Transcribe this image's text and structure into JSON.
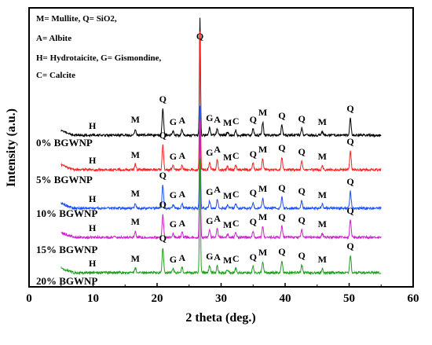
{
  "chart_data": {
    "type": "line",
    "title": "",
    "xlabel": "2 theta (deg.)",
    "ylabel": "Intensity (a.u.)",
    "xlim": [
      0,
      60
    ],
    "xticks": [
      0,
      10,
      20,
      30,
      40,
      50,
      60
    ],
    "yticks": "none",
    "grid": false,
    "legend_position": "top-left",
    "legend_text": [
      "M= Mullite,  Q= SiO2,",
      "A= Albite",
      "H= Hydrotaicite,  G= Gismondine,",
      "C= Calcite"
    ],
    "x_range_data": [
      5,
      55
    ],
    "peaks": [
      {
        "label": "H",
        "x": 9.9
      },
      {
        "label": "M",
        "x": 16.6
      },
      {
        "label": "Q",
        "x": 20.9
      },
      {
        "label": "G",
        "x": 22.5
      },
      {
        "label": "A",
        "x": 23.9
      },
      {
        "label": "Q",
        "x": 26.7
      },
      {
        "label": "G",
        "x": 28.2
      },
      {
        "label": "A",
        "x": 29.4
      },
      {
        "label": "M",
        "x": 31.0
      },
      {
        "label": "C",
        "x": 32.3
      },
      {
        "label": "Q",
        "x": 35.0
      },
      {
        "label": "M",
        "x": 36.5
      },
      {
        "label": "Q",
        "x": 39.5
      },
      {
        "label": "Q",
        "x": 42.6
      },
      {
        "label": "M",
        "x": 45.8
      },
      {
        "label": "Q",
        "x": 50.2
      }
    ],
    "series": [
      {
        "name": "0% BGWNP",
        "color": "#000000",
        "peak_heights": [
          0,
          8,
          34,
          5,
          7,
          150,
          10,
          8,
          4,
          6,
          8,
          17,
          13,
          9,
          5,
          22
        ]
      },
      {
        "name": "5% BGWNP",
        "color": "#ff2020",
        "peak_heights": [
          0,
          7,
          32,
          5,
          6,
          175,
          10,
          14,
          4,
          6,
          8,
          14,
          16,
          11,
          5,
          24
        ]
      },
      {
        "name": "10% BGWNP",
        "color": "#2050ff",
        "peak_heights": [
          0,
          7,
          30,
          5,
          6,
          130,
          9,
          12,
          4,
          6,
          8,
          13,
          14,
          10,
          5,
          22
        ]
      },
      {
        "name": "15% BGWNP",
        "color": "#d020d0",
        "peak_heights": [
          0,
          8,
          30,
          5,
          6,
          150,
          9,
          12,
          4,
          6,
          8,
          14,
          14,
          10,
          5,
          22
        ]
      },
      {
        "name": "20% BGWNP",
        "color": "#20a020",
        "peak_heights": [
          0,
          6,
          32,
          5,
          7,
          145,
          9,
          8,
          4,
          6,
          8,
          14,
          15,
          10,
          5,
          22
        ]
      }
    ]
  }
}
